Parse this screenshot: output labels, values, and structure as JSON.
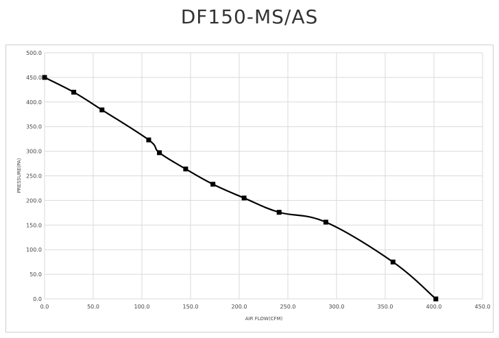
{
  "chart_data": {
    "type": "line",
    "title": "DF150-MS/AS",
    "xlabel": "AIR FLOW(CFM)",
    "ylabel": "PRESSURE(PA)",
    "xlim": [
      0,
      450
    ],
    "ylim": [
      0,
      500
    ],
    "x_ticks": [
      "0.0",
      "50.0",
      "100.0",
      "150.0",
      "200.0",
      "250.0",
      "300.0",
      "350.0",
      "400.0",
      "450.0"
    ],
    "y_ticks": [
      "0.0",
      "50.0",
      "100.0",
      "150.0",
      "200.0",
      "250.0",
      "300.0",
      "350.0",
      "400.0",
      "450.0",
      "500.0"
    ],
    "grid": true,
    "legend": "none",
    "series": [
      {
        "x": [
          0,
          30,
          59,
          107,
          118,
          145,
          173,
          205,
          241,
          289,
          358,
          402
        ],
        "y": [
          450,
          420,
          384,
          323,
          297,
          264,
          233,
          205,
          176,
          156,
          75,
          0
        ]
      }
    ],
    "colors": {
      "line": "#000000",
      "grid": "#d9d9d9",
      "marker": "#000000"
    }
  }
}
